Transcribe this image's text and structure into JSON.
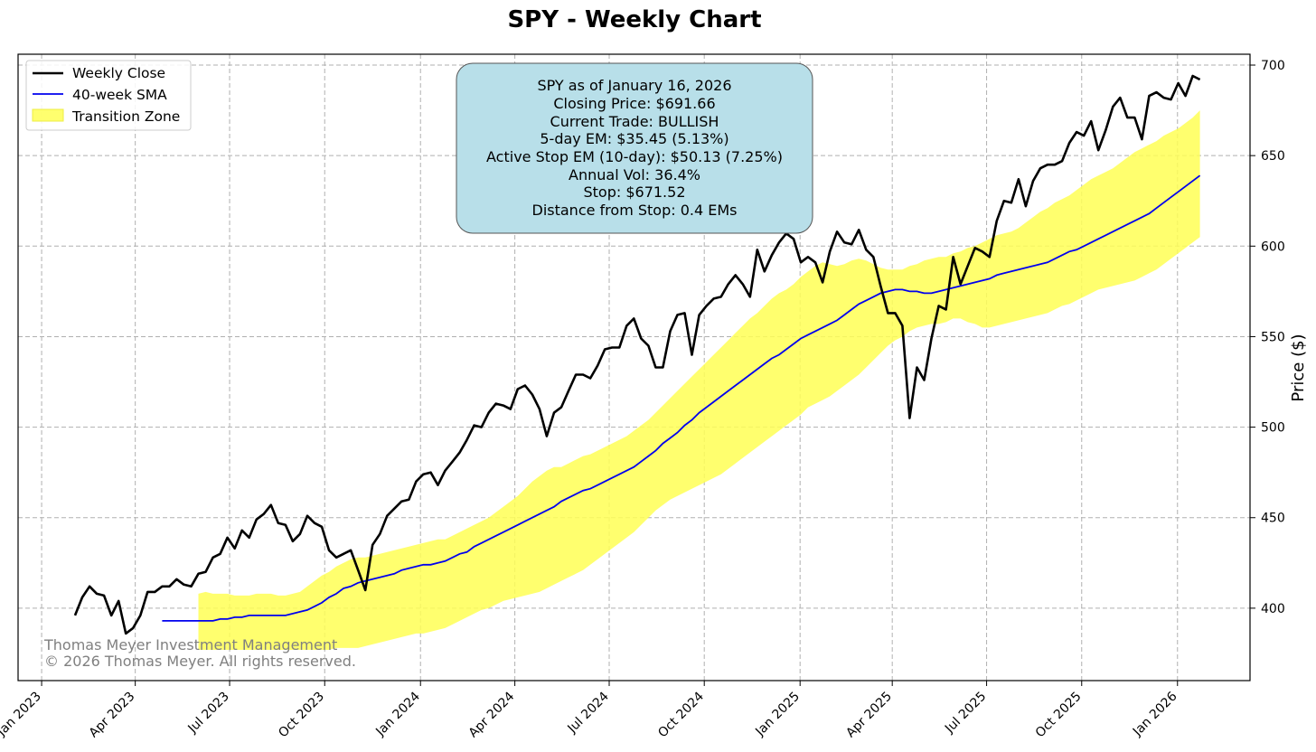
{
  "chart_data": {
    "type": "line",
    "title": "SPY - Weekly Chart",
    "xlabel": "",
    "ylabel": "Price ($)",
    "ylim": [
      360,
      706
    ],
    "y_ticks": [
      400,
      450,
      500,
      550,
      600,
      650,
      700
    ],
    "x_ticks": [
      {
        "label": "Jan 2023",
        "week": -4.6
      },
      {
        "label": "Apr 2023",
        "week": 8.3
      },
      {
        "label": "Jul 2023",
        "week": 21.3
      },
      {
        "label": "Oct 2023",
        "week": 34.4
      },
      {
        "label": "Jan 2024",
        "week": 47.6
      },
      {
        "label": "Apr 2024",
        "week": 60.6
      },
      {
        "label": "Jul 2024",
        "week": 73.6
      },
      {
        "label": "Oct 2024",
        "week": 86.7
      },
      {
        "label": "Jan 2025",
        "week": 99.9
      },
      {
        "label": "Apr 2025",
        "week": 112.6
      },
      {
        "label": "Jul 2025",
        "week": 125.6
      },
      {
        "label": "Oct 2025",
        "week": 138.7
      },
      {
        "label": "Jan 2026",
        "week": 151.9
      }
    ],
    "legend": {
      "position": "top-left",
      "entries": [
        "Weekly Close",
        "40-week SMA",
        "Transition Zone"
      ]
    },
    "grid": true,
    "colors": {
      "close": "#000000",
      "sma": "#0000ee",
      "zone": "#ffff55"
    },
    "x_desc": "week index (0 = first week of Feb 2023)",
    "series": [
      {
        "name": "Weekly Close",
        "values": [
          396,
          406,
          412,
          408,
          407,
          396,
          404,
          386,
          389,
          396,
          409,
          409,
          412,
          412,
          416,
          413,
          412,
          419,
          420,
          428,
          430,
          439,
          433,
          443,
          439,
          449,
          452,
          457,
          447,
          446,
          437,
          441,
          451,
          447,
          445,
          432,
          428,
          430,
          432,
          421,
          410,
          435,
          441,
          451,
          455,
          459,
          460,
          470,
          474,
          475,
          468,
          476,
          481,
          486,
          493,
          501,
          500,
          508,
          513,
          512,
          510,
          521,
          523,
          518,
          510,
          495,
          508,
          511,
          520,
          529,
          529,
          527,
          534,
          543,
          544,
          544,
          556,
          560,
          549,
          545,
          533,
          533,
          553,
          562,
          563,
          540,
          562,
          567,
          571,
          572,
          579,
          584,
          579,
          572,
          598,
          586,
          595,
          602,
          607,
          604,
          591,
          594,
          591,
          580,
          597,
          608,
          602,
          601,
          609,
          598,
          594,
          578,
          563,
          563,
          556,
          505,
          533,
          526,
          549,
          567,
          565,
          594,
          579,
          589,
          599,
          597,
          594,
          614,
          625,
          624,
          637,
          622,
          636,
          643,
          645,
          645,
          647,
          657,
          663,
          661,
          669,
          653,
          664,
          677,
          682,
          671,
          671,
          659,
          683,
          685,
          682,
          681,
          690,
          683,
          694,
          692
        ]
      },
      {
        "name": "40-week SMA",
        "values": [
          393,
          393,
          393,
          393,
          393,
          393,
          393,
          393,
          394,
          394,
          395,
          395,
          396,
          396,
          396,
          396,
          396,
          396,
          397,
          398,
          399,
          401,
          403,
          406,
          408,
          411,
          412,
          414,
          415,
          416,
          417,
          418,
          419,
          421,
          422,
          423,
          424,
          424,
          425,
          426,
          428,
          430,
          431,
          434,
          436,
          438,
          440,
          442,
          444,
          446,
          448,
          450,
          452,
          454,
          456,
          459,
          461,
          463,
          465,
          466,
          468,
          470,
          472,
          474,
          476,
          478,
          481,
          484,
          487,
          491,
          494,
          497,
          501,
          504,
          508,
          511,
          514,
          517,
          520,
          523,
          526,
          529,
          532,
          535,
          538,
          540,
          543,
          546,
          549,
          551,
          553,
          555,
          557,
          559,
          562,
          565,
          568,
          570,
          572,
          574,
          575,
          576,
          576,
          575,
          575,
          574,
          574,
          575,
          576,
          577,
          578,
          579,
          580,
          581,
          582,
          584,
          585,
          586,
          587,
          588,
          589,
          590,
          591,
          593,
          595,
          597,
          598,
          600,
          602,
          604,
          606,
          608,
          610,
          612,
          614,
          616,
          618,
          621,
          624,
          627,
          630,
          633,
          636,
          639
        ]
      },
      {
        "name": "Transition Zone (upper)",
        "values": [
          408,
          409,
          408,
          408,
          408,
          407,
          407,
          407,
          408,
          408,
          408,
          407,
          407,
          408,
          409,
          412,
          415,
          418,
          420,
          423,
          425,
          427,
          428,
          428,
          429,
          430,
          431,
          432,
          433,
          434,
          435,
          436,
          437,
          438,
          438,
          440,
          442,
          444,
          446,
          448,
          450,
          453,
          456,
          459,
          462,
          466,
          470,
          473,
          476,
          478,
          478,
          480,
          482,
          484,
          485,
          487,
          489,
          491,
          493,
          495,
          498,
          501,
          504,
          508,
          512,
          516,
          520,
          524,
          528,
          532,
          536,
          540,
          544,
          548,
          552,
          556,
          560,
          563,
          567,
          571,
          574,
          576,
          579,
          583,
          586,
          589,
          591,
          590,
          589,
          590,
          592,
          593,
          592,
          590,
          588,
          587,
          587,
          587,
          589,
          590,
          592,
          593,
          594,
          594,
          596,
          597,
          599,
          600,
          602,
          604,
          606,
          607,
          608,
          610,
          613,
          616,
          619,
          621,
          624,
          626,
          628,
          631,
          634,
          637,
          639,
          641,
          643,
          646,
          649,
          652,
          654,
          656,
          658,
          661,
          663,
          665,
          668,
          671,
          675
        ]
      },
      {
        "name": "Transition Zone (lower)",
        "values": [
          377,
          378,
          378,
          378,
          378,
          379,
          380,
          381,
          382,
          383,
          384,
          385,
          386,
          386,
          387,
          388,
          389,
          391,
          393,
          395,
          397,
          399,
          400,
          402,
          404,
          405,
          406,
          407,
          408,
          409,
          411,
          413,
          415,
          417,
          419,
          421,
          424,
          427,
          430,
          433,
          436,
          439,
          442,
          446,
          450,
          454,
          457,
          460,
          462,
          464,
          466,
          468,
          470,
          472,
          474,
          477,
          480,
          483,
          486,
          489,
          492,
          495,
          498,
          501,
          504,
          507,
          511,
          513,
          515,
          517,
          520,
          523,
          526,
          529,
          533,
          537,
          541,
          545,
          548,
          550,
          553,
          555,
          556,
          557,
          557,
          558,
          560,
          560,
          558,
          557,
          555,
          555,
          556,
          557,
          558,
          559,
          560,
          561,
          562,
          563,
          565,
          567,
          568,
          570,
          572,
          574,
          576,
          577,
          578,
          579,
          580,
          581,
          583,
          585,
          587,
          590,
          593,
          596,
          599,
          602,
          605
        ]
      }
    ]
  },
  "info_box": {
    "lines": [
      "SPY as of January 16, 2026",
      "Closing Price: $691.66",
      "Current Trade: BULLISH",
      "5-day EM: $35.45 (5.13%)",
      "Active Stop EM (10-day): $50.13 (7.25%)",
      "Annual Vol: 36.4%",
      "Stop: $671.52",
      "Distance from Stop: 0.4 EMs"
    ]
  },
  "watermark": {
    "line1": "Thomas Meyer Investment Management",
    "line2": "© 2026 Thomas Meyer. All rights reserved."
  }
}
